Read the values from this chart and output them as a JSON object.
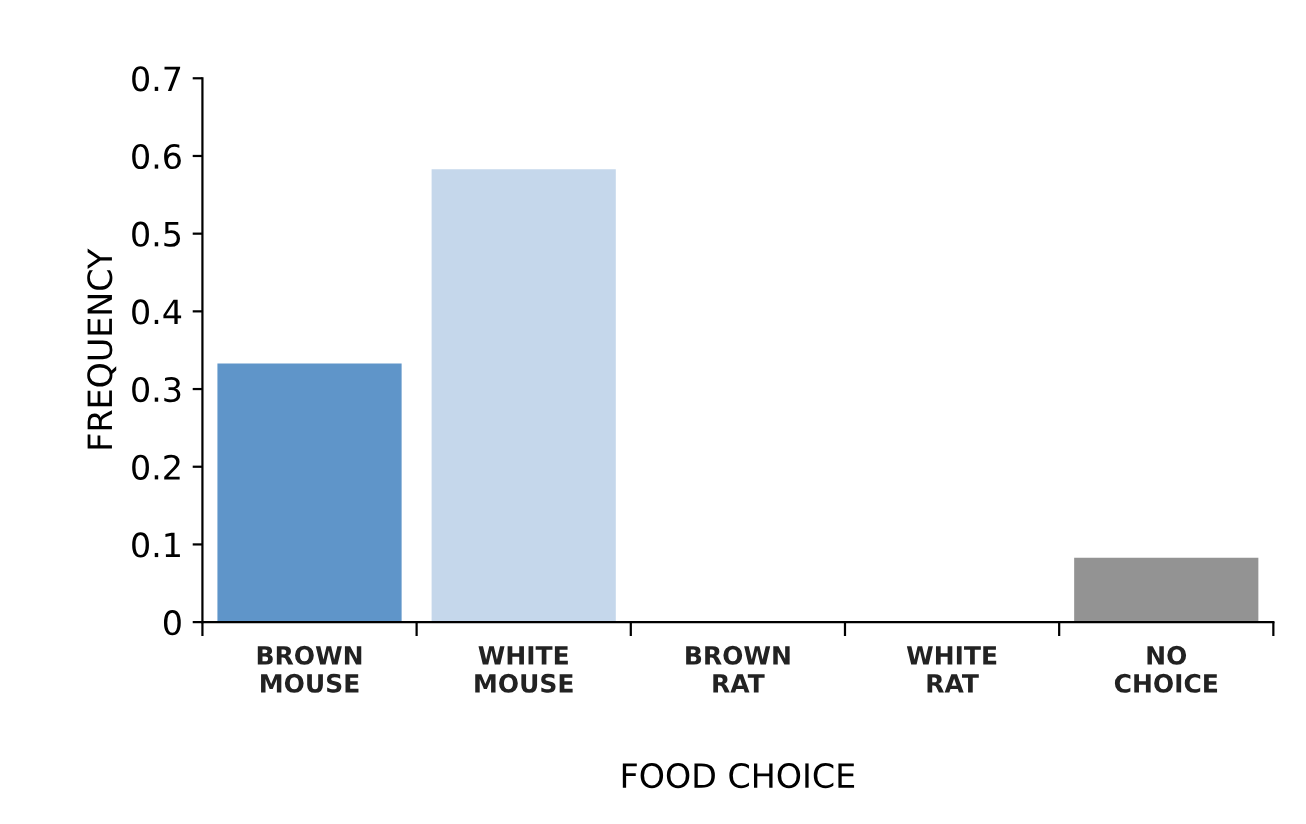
{
  "chart_data": {
    "type": "bar",
    "xlabel": "FOOD CHOICE",
    "ylabel": "FREQUENCY",
    "categories": [
      "BROWN\nMOUSE",
      "WHITE\nMOUSE",
      "BROWN\nRAT",
      "WHITE\nRAT",
      "NO\nCHOICE"
    ],
    "values": [
      0.333,
      0.583,
      0,
      0,
      0.083
    ],
    "colors": [
      "#5f95c9",
      "#c5d7eb",
      "#5f95c9",
      "#c5d7eb",
      "#939393"
    ],
    "ylim": [
      0,
      0.7
    ],
    "yticks": [
      {
        "value": 0,
        "label": "0"
      },
      0.1,
      0.2,
      0.3,
      0.4,
      0.5,
      0.6,
      0.7
    ],
    "grid": false,
    "legend": false
  }
}
